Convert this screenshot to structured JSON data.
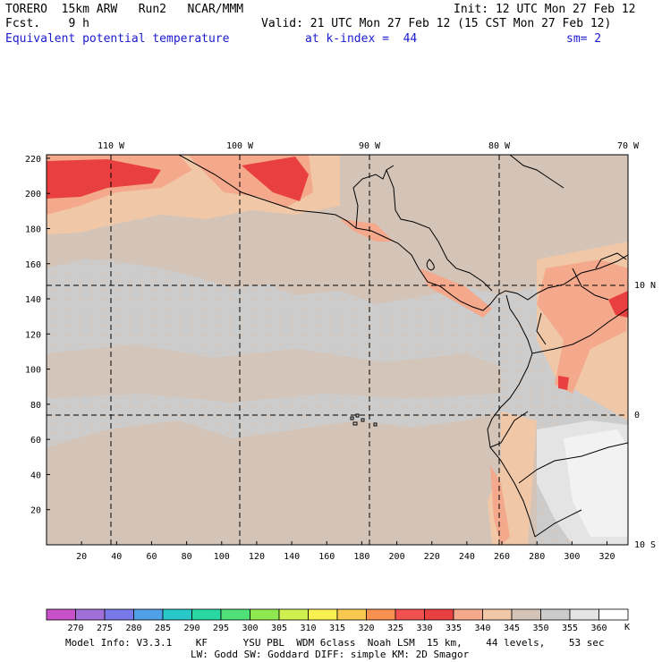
{
  "header": {
    "model": "TORERO  15km ARW   Run2   NCAR/MMM",
    "init": "Init: 12 UTC Mon 27 Feb 12",
    "fcst": "Fcst.    9 h",
    "valid": "Valid: 21 UTC Mon 27 Feb 12 (15 CST Mon 27 Feb 12)",
    "field": "Equivalent potential temperature",
    "level": "at k-index =  44",
    "smoothing": "sm= 2"
  },
  "map": {
    "lon_labels": [
      "110 W",
      "100 W",
      "90 W",
      "80 W",
      "70 W"
    ],
    "lat_labels": [
      "10 N",
      "0",
      "10 S"
    ],
    "x_ticks": [
      "20",
      "40",
      "60",
      "80",
      "100",
      "120",
      "140",
      "160",
      "180",
      "200",
      "220",
      "240",
      "260",
      "280",
      "300",
      "320"
    ],
    "y_ticks": [
      "20",
      "40",
      "60",
      "80",
      "100",
      "120",
      "140",
      "160",
      "180",
      "200",
      "220"
    ],
    "grid_x_range": [
      0,
      332
    ],
    "grid_y_range": [
      0,
      222
    ]
  },
  "colorbar": {
    "labels": [
      "270",
      "275",
      "280",
      "285",
      "290",
      "295",
      "300",
      "305",
      "310",
      "315",
      "320",
      "325",
      "330",
      "335",
      "340",
      "345",
      "350",
      "355",
      "360"
    ],
    "unit": "K",
    "colors": [
      "#c850c8",
      "#a070d8",
      "#7878e8",
      "#50a0e8",
      "#28c8c8",
      "#28d8a0",
      "#50e078",
      "#90e850",
      "#d0f050",
      "#f8f050",
      "#f8c850",
      "#f89050",
      "#f05050",
      "#e84040",
      "#f4a88c",
      "#f0c8a8",
      "#d4c4b8",
      "#cccccc",
      "#e4e4e4",
      "#ffffff"
    ]
  },
  "footer": {
    "line1": "Model Info: V3.3.1    KF      YSU PBL  WDM 6class  Noah LSM  15 km,    44 levels,    53 sec",
    "line2": "LW: Godd SW: Goddard DIFF: simple KM: 2D Smagor"
  }
}
